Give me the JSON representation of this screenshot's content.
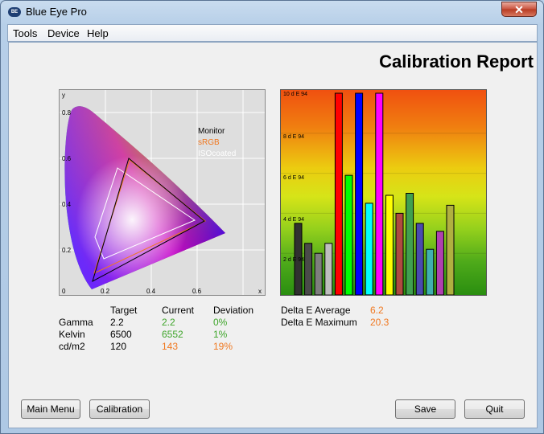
{
  "window": {
    "title": "Blue Eye Pro",
    "icon": "app-logo",
    "close_glyph": "✕"
  },
  "menu": [
    {
      "label": "Tools"
    },
    {
      "label": "Device"
    },
    {
      "label": "Help"
    }
  ],
  "report": {
    "title": "Calibration Report"
  },
  "cie": {
    "y_axis_label": "y",
    "x_axis_label": "x",
    "y_ticks": [
      "0.8",
      "0.6",
      "0.4",
      "0.2",
      "0"
    ],
    "x_ticks": [
      "0.2",
      "0.4",
      "0.6"
    ],
    "legend": [
      {
        "label": "Monitor",
        "color": "#000000"
      },
      {
        "label": "sRGB",
        "color": "#f07820"
      },
      {
        "label": "ISOcoated",
        "color": "#ffffff"
      }
    ]
  },
  "delta_chart": {
    "y_ticks": [
      "10 d E 94",
      "8 d E 94",
      "6 d E 94",
      "4 d E 94",
      "2 d E 94"
    ],
    "ylim": [
      0,
      10
    ]
  },
  "chart_data": {
    "type": "bar",
    "title": "",
    "ylabel": "",
    "ylim": [
      0,
      10
    ],
    "values": [
      3.5,
      2.5,
      2.0,
      2.5,
      10,
      5.9,
      10,
      4.5,
      10,
      4.9,
      4.0,
      5.0,
      3.5,
      2.2,
      3.1,
      4.4
    ],
    "colors": [
      "#303030",
      "#4a4a4a",
      "#7e7e7e",
      "#bebebe",
      "#ff0000",
      "#00ff00",
      "#0000ff",
      "#00ffff",
      "#ff00ff",
      "#ffff00",
      "#b04a40",
      "#40a050",
      "#4a4ab0",
      "#40b0b0",
      "#b040b0",
      "#b0b040"
    ]
  },
  "stats": {
    "headers": {
      "target": "Target",
      "current": "Current",
      "deviation": "Deviation"
    },
    "rows": [
      {
        "label": "Gamma",
        "target": "2.2",
        "current": "2.2",
        "deviation": "0%"
      },
      {
        "label": "Kelvin",
        "target": "6500",
        "current": "6552",
        "deviation": "1%"
      },
      {
        "label": "cd/m2",
        "target": "120",
        "current": "143",
        "deviation": "19%"
      }
    ]
  },
  "delta_e": {
    "average_label": "Delta E Average",
    "average_value": "6.2",
    "maximum_label": "Delta E Maximum",
    "maximum_value": "20.3"
  },
  "buttons": {
    "main_menu": "Main Menu",
    "calibration": "Calibration",
    "save": "Save",
    "quit": "Quit"
  }
}
